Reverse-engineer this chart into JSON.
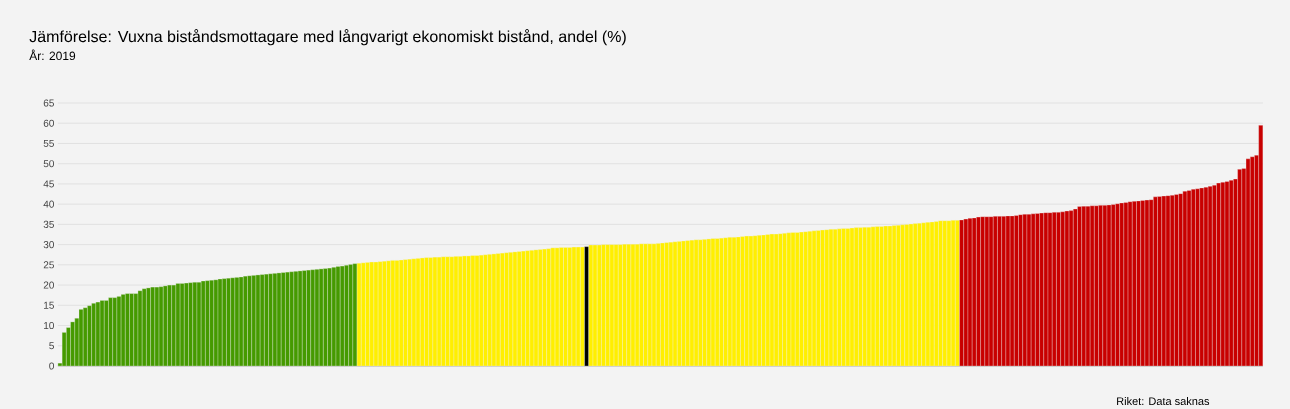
{
  "chart_data": {
    "type": "bar",
    "title": "Jämförelse: Vuxna biståndsmottagare med långvarigt ekonomiskt bistånd, andel (%)",
    "subtitle": "År: 2019",
    "annotations": [
      "Riket: Data saknas"
    ],
    "ylim": [
      0,
      65
    ],
    "yticks": [
      0,
      5,
      10,
      15,
      20,
      25,
      30,
      35,
      40,
      45,
      50,
      55,
      60,
      65
    ],
    "grid": "y",
    "categories": [
      null,
      null,
      null,
      null,
      null,
      null,
      null,
      null,
      null,
      null,
      null,
      null,
      null,
      null,
      null,
      null,
      null,
      null,
      null,
      null,
      null,
      null,
      null,
      null,
      null,
      null,
      null,
      null,
      null,
      null,
      null,
      null,
      null,
      null,
      null,
      null,
      null,
      null,
      null,
      null,
      null,
      null,
      null,
      null,
      null,
      null,
      null,
      null,
      null,
      null,
      null,
      null,
      null,
      null,
      null,
      null,
      null,
      null,
      null,
      null,
      null,
      null,
      null,
      null,
      null,
      null,
      null,
      null,
      null,
      null,
      null,
      null,
      null,
      null,
      null,
      null,
      null,
      null,
      null,
      null,
      null,
      null,
      null,
      null,
      null,
      null,
      null,
      null,
      null,
      null,
      null,
      null,
      null,
      null,
      null,
      null,
      null,
      null,
      null,
      null,
      null,
      null,
      null,
      null,
      null,
      null,
      null,
      null,
      null,
      null,
      null,
      null,
      null,
      null,
      null,
      null,
      null,
      null,
      null,
      null,
      null,
      null,
      null,
      null,
      null,
      null,
      null,
      null,
      null,
      null,
      null,
      null,
      null,
      null,
      null,
      null,
      null,
      null,
      null,
      null,
      null,
      null,
      null,
      null,
      null,
      null,
      null,
      null,
      null,
      null,
      null,
      null,
      null,
      null,
      null,
      null,
      null,
      null,
      null,
      null,
      null,
      null,
      null,
      null,
      null,
      null,
      null,
      null,
      null,
      null,
      null,
      null,
      null,
      null,
      null,
      null,
      null,
      null,
      null,
      null,
      null,
      null,
      null,
      null,
      null,
      null,
      null,
      null,
      null,
      null,
      null,
      null,
      null,
      null,
      null,
      null,
      null,
      null,
      null,
      null,
      null,
      null,
      null,
      null,
      null,
      null,
      null,
      null,
      null,
      null,
      null,
      null,
      null,
      null,
      null,
      null,
      null,
      null,
      null,
      null,
      null,
      null,
      null,
      null,
      null,
      null,
      null,
      null,
      null,
      null,
      null,
      null,
      null,
      null,
      null,
      null,
      null,
      null,
      null,
      null,
      null,
      null,
      null,
      null,
      null,
      null,
      null,
      null,
      null,
      null,
      null,
      null,
      null,
      null,
      null,
      null,
      null,
      null,
      null,
      null,
      null,
      null,
      null,
      null,
      null,
      null,
      null,
      null,
      null,
      null,
      null,
      null,
      null,
      null,
      null,
      null,
      null,
      null,
      null,
      null,
      null,
      null,
      null,
      null,
      null,
      null
    ],
    "values": [
      0.7,
      8.3,
      9.5,
      10.9,
      11.8,
      14.0,
      14.4,
      14.9,
      15.5,
      15.8,
      16.2,
      16.2,
      16.9,
      16.9,
      17.2,
      17.7,
      17.9,
      17.9,
      17.9,
      18.6,
      19.1,
      19.3,
      19.5,
      19.5,
      19.6,
      19.8,
      20.0,
      20.0,
      20.4,
      20.4,
      20.5,
      20.6,
      20.7,
      20.7,
      21.0,
      21.1,
      21.2,
      21.3,
      21.5,
      21.6,
      21.7,
      21.8,
      21.9,
      22.0,
      22.2,
      22.3,
      22.4,
      22.5,
      22.6,
      22.7,
      22.8,
      22.9,
      23.0,
      23.1,
      23.2,
      23.3,
      23.4,
      23.5,
      23.6,
      23.7,
      23.8,
      23.9,
      24.0,
      24.1,
      24.2,
      24.4,
      24.6,
      24.7,
      24.9,
      25.1,
      25.3,
      25.4,
      25.5,
      25.6,
      25.7,
      25.7,
      25.8,
      25.9,
      26.0,
      26.1,
      26.1,
      26.2,
      26.3,
      26.4,
      26.5,
      26.6,
      26.7,
      26.8,
      26.8,
      26.9,
      26.9,
      27.0,
      27.0,
      27.0,
      27.1,
      27.1,
      27.2,
      27.2,
      27.3,
      27.3,
      27.4,
      27.5,
      27.6,
      27.7,
      27.8,
      27.9,
      28.0,
      28.1,
      28.2,
      28.3,
      28.4,
      28.5,
      28.6,
      28.7,
      28.8,
      28.9,
      29.0,
      29.2,
      29.2,
      29.3,
      29.3,
      29.3,
      29.4,
      29.4,
      29.4,
      29.5,
      29.9,
      29.9,
      29.9,
      30.0,
      30.0,
      30.0,
      30.0,
      30.0,
      30.1,
      30.1,
      30.1,
      30.1,
      30.2,
      30.2,
      30.2,
      30.2,
      30.3,
      30.4,
      30.5,
      30.6,
      30.7,
      30.8,
      30.9,
      31.0,
      31.1,
      31.2,
      31.2,
      31.3,
      31.4,
      31.5,
      31.5,
      31.6,
      31.7,
      31.8,
      31.8,
      31.9,
      32.0,
      32.1,
      32.1,
      32.2,
      32.3,
      32.4,
      32.5,
      32.6,
      32.6,
      32.7,
      32.8,
      32.9,
      33.0,
      33.0,
      33.1,
      33.2,
      33.3,
      33.4,
      33.5,
      33.6,
      33.7,
      33.8,
      33.8,
      33.9,
      34.0,
      34.0,
      34.1,
      34.2,
      34.2,
      34.3,
      34.3,
      34.4,
      34.5,
      34.5,
      34.6,
      34.6,
      34.7,
      34.8,
      34.9,
      35.0,
      35.1,
      35.2,
      35.3,
      35.4,
      35.5,
      35.6,
      35.7,
      35.9,
      35.9,
      35.9,
      36.0,
      36.0,
      36.1,
      36.3,
      36.5,
      36.6,
      36.8,
      36.9,
      36.9,
      36.9,
      37.0,
      37.0,
      37.0,
      37.1,
      37.1,
      37.2,
      37.4,
      37.5,
      37.5,
      37.6,
      37.7,
      37.8,
      37.9,
      37.9,
      38.0,
      38.0,
      38.1,
      38.3,
      38.4,
      38.8,
      39.4,
      39.5,
      39.5,
      39.6,
      39.6,
      39.7,
      39.7,
      39.8,
      39.9,
      40.1,
      40.3,
      40.4,
      40.6,
      40.7,
      40.8,
      40.9,
      41.0,
      41.1,
      41.8,
      41.9,
      42.0,
      42.1,
      42.2,
      42.4,
      42.6,
      43.2,
      43.4,
      43.7,
      43.8,
      44.0,
      44.2,
      44.4,
      44.7,
      45.2,
      45.4,
      45.6,
      45.9,
      46.2,
      48.6,
      48.8,
      51.2,
      51.7,
      52.1,
      59.5
    ],
    "colors": [
      "#459a00",
      "#459a00",
      "#459a00",
      "#459a00",
      "#459a00",
      "#459a00",
      "#459a00",
      "#459a00",
      "#459a00",
      "#459a00",
      "#459a00",
      "#459a00",
      "#459a00",
      "#459a00",
      "#459a00",
      "#459a00",
      "#459a00",
      "#459a00",
      "#459a00",
      "#459a00",
      "#459a00",
      "#459a00",
      "#459a00",
      "#459a00",
      "#459a00",
      "#459a00",
      "#459a00",
      "#459a00",
      "#459a00",
      "#459a00",
      "#459a00",
      "#459a00",
      "#459a00",
      "#459a00",
      "#459a00",
      "#459a00",
      "#459a00",
      "#459a00",
      "#459a00",
      "#459a00",
      "#459a00",
      "#459a00",
      "#459a00",
      "#459a00",
      "#459a00",
      "#459a00",
      "#459a00",
      "#459a00",
      "#459a00",
      "#459a00",
      "#459a00",
      "#459a00",
      "#459a00",
      "#459a00",
      "#459a00",
      "#459a00",
      "#459a00",
      "#459a00",
      "#459a00",
      "#459a00",
      "#459a00",
      "#459a00",
      "#459a00",
      "#459a00",
      "#459a00",
      "#459a00",
      "#459a00",
      "#459a00",
      "#459a00",
      "#459a00",
      "#459a00",
      "#ffef00",
      "#ffef00",
      "#ffef00",
      "#ffef00",
      "#ffef00",
      "#ffef00",
      "#ffef00",
      "#ffef00",
      "#ffef00",
      "#ffef00",
      "#ffef00",
      "#ffef00",
      "#ffef00",
      "#ffef00",
      "#ffef00",
      "#ffef00",
      "#ffef00",
      "#ffef00",
      "#ffef00",
      "#ffef00",
      "#ffef00",
      "#ffef00",
      "#ffef00",
      "#ffef00",
      "#ffef00",
      "#ffef00",
      "#ffef00",
      "#ffef00",
      "#ffef00",
      "#ffef00",
      "#ffef00",
      "#ffef00",
      "#ffef00",
      "#ffef00",
      "#ffef00",
      "#ffef00",
      "#ffef00",
      "#ffef00",
      "#ffef00",
      "#ffef00",
      "#ffef00",
      "#ffef00",
      "#ffef00",
      "#ffef00",
      "#ffef00",
      "#ffef00",
      "#ffef00",
      "#ffef00",
      "#ffef00",
      "#ffef00",
      "#ffef00",
      "#ffef00",
      "#ffef00",
      "#ffef00",
      "#000000",
      "#ffef00",
      "#ffef00",
      "#ffef00",
      "#ffef00",
      "#ffef00",
      "#ffef00",
      "#ffef00",
      "#ffef00",
      "#ffef00",
      "#ffef00",
      "#ffef00",
      "#ffef00",
      "#ffef00",
      "#ffef00",
      "#ffef00",
      "#ffef00",
      "#ffef00",
      "#ffef00",
      "#ffef00",
      "#ffef00",
      "#ffef00",
      "#ffef00",
      "#ffef00",
      "#ffef00",
      "#ffef00",
      "#ffef00",
      "#ffef00",
      "#ffef00",
      "#ffef00",
      "#ffef00",
      "#ffef00",
      "#ffef00",
      "#ffef00",
      "#ffef00",
      "#ffef00",
      "#ffef00",
      "#ffef00",
      "#ffef00",
      "#ffef00",
      "#ffef00",
      "#ffef00",
      "#ffef00",
      "#ffef00",
      "#ffef00",
      "#ffef00",
      "#ffef00",
      "#ffef00",
      "#ffef00",
      "#ffef00",
      "#ffef00",
      "#ffef00",
      "#ffef00",
      "#ffef00",
      "#ffef00",
      "#ffef00",
      "#ffef00",
      "#ffef00",
      "#ffef00",
      "#ffef00",
      "#ffef00",
      "#ffef00",
      "#ffef00",
      "#ffef00",
      "#ffef00",
      "#ffef00",
      "#ffef00",
      "#ffef00",
      "#ffef00",
      "#ffef00",
      "#ffef00",
      "#ffef00",
      "#ffef00",
      "#ffef00",
      "#ffef00",
      "#ffef00",
      "#ffef00",
      "#ffef00",
      "#ffef00",
      "#ffef00",
      "#ffef00",
      "#ffef00",
      "#ffef00",
      "#ffef00",
      "#ffef00",
      "#ffef00",
      "#ffef00",
      "#ffef00",
      "#ffef00",
      "#c80000",
      "#c80000",
      "#c80000",
      "#c80000",
      "#c80000",
      "#c80000",
      "#c80000",
      "#c80000",
      "#c80000",
      "#c80000",
      "#c80000",
      "#c80000",
      "#c80000",
      "#c80000",
      "#c80000",
      "#c80000",
      "#c80000",
      "#c80000",
      "#c80000",
      "#c80000",
      "#c80000",
      "#c80000",
      "#c80000",
      "#c80000",
      "#c80000",
      "#c80000",
      "#c80000",
      "#c80000",
      "#c80000",
      "#c80000",
      "#c80000",
      "#c80000",
      "#c80000",
      "#c80000",
      "#c80000",
      "#c80000",
      "#c80000",
      "#c80000",
      "#c80000",
      "#c80000",
      "#c80000",
      "#c80000",
      "#c80000",
      "#c80000",
      "#c80000",
      "#c80000",
      "#c80000",
      "#c80000",
      "#c80000",
      "#c80000",
      "#c80000",
      "#c80000",
      "#c80000",
      "#c80000",
      "#c80000",
      "#c80000",
      "#c80000",
      "#c80000",
      "#c80000",
      "#c80000",
      "#c80000",
      "#c80000",
      "#c80000",
      "#c80000",
      "#c80000",
      "#c80000",
      "#c80000",
      "#c80000",
      "#c80000",
      "#c80000",
      "#c80000",
      "#c80000"
    ]
  }
}
